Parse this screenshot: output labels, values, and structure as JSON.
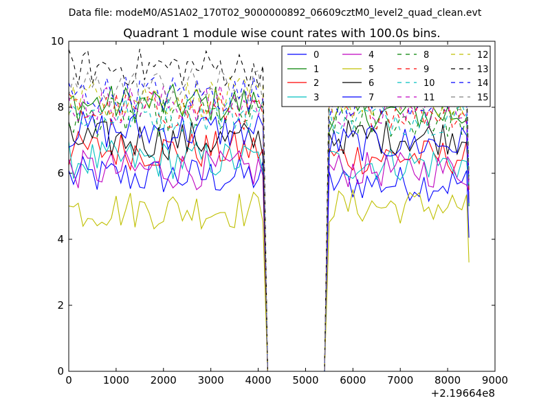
{
  "header": {
    "suptitle": "Data file: modeM0/AS1A02_170T02_9000000892_06609cztM0_level2_quad_clean.evt",
    "title": "Quadrant 1 module wise count rates with 100.0s bins."
  },
  "chart_data": {
    "type": "line",
    "xlim": [
      0,
      9000
    ],
    "ylim": [
      0,
      10
    ],
    "x_offset_label": "+2.19664e8",
    "x_ticks": [
      0,
      1000,
      2000,
      3000,
      4000,
      5000,
      6000,
      7000,
      8000,
      9000
    ],
    "y_ticks": [
      0,
      2,
      4,
      6,
      8,
      10
    ],
    "x_tick_labels": [
      "0",
      "1000",
      "2000",
      "3000",
      "4000",
      "5000",
      "6000",
      "7000",
      "8000",
      "9000"
    ],
    "y_tick_labels": [
      "0",
      "2",
      "4",
      "6",
      "8",
      "10"
    ],
    "grid": false,
    "legend_position": "top-right",
    "legend_columns": 4,
    "segments": {
      "first": {
        "x_start": 0,
        "x_end": 4100,
        "step": 100
      },
      "gap": {
        "x_start": 4200,
        "x_end": 5400,
        "y": 0
      },
      "second": {
        "x_start": 5500,
        "x_end": 8400,
        "step": 100
      },
      "tail_x": 8450
    },
    "series": [
      {
        "name": "0",
        "color": "#0000ff",
        "dash": "solid",
        "level1": 5.9,
        "level2": 5.7,
        "tail": 4.05
      },
      {
        "name": "1",
        "color": "#008000",
        "dash": "solid",
        "level1": 8.1,
        "level2": 7.8,
        "tail": 5.0
      },
      {
        "name": "2",
        "color": "#ff0000",
        "dash": "solid",
        "level1": 6.7,
        "level2": 6.5,
        "tail": 5.2
      },
      {
        "name": "3",
        "color": "#00bfbf",
        "dash": "solid",
        "level1": 6.4,
        "level2": 6.3,
        "tail": 5.6
      },
      {
        "name": "4",
        "color": "#bf00bf",
        "dash": "solid",
        "level1": 6.1,
        "level2": 6.1,
        "tail": 5.4
      },
      {
        "name": "5",
        "color": "#bfbf00",
        "dash": "solid",
        "level1": 4.9,
        "level2": 5.0,
        "tail": 3.3
      },
      {
        "name": "6",
        "color": "#000000",
        "dash": "solid",
        "level1": 7.0,
        "level2": 7.1,
        "tail": 5.5
      },
      {
        "name": "7",
        "color": "#0000ff",
        "dash": "solid",
        "level1": 7.3,
        "level2": 6.9,
        "tail": 5.1
      },
      {
        "name": "8",
        "color": "#008000",
        "dash": "dashed",
        "level1": 7.7,
        "level2": 7.6,
        "tail": 5.5
      },
      {
        "name": "9",
        "color": "#ff0000",
        "dash": "dashed",
        "level1": 7.9,
        "level2": 7.9,
        "tail": 5.4
      },
      {
        "name": "10",
        "color": "#00bfbf",
        "dash": "dashed",
        "level1": 7.8,
        "level2": 7.7,
        "tail": 5.6
      },
      {
        "name": "11",
        "color": "#bf00bf",
        "dash": "dashed",
        "level1": 8.1,
        "level2": 7.9,
        "tail": 5.6
      },
      {
        "name": "12",
        "color": "#bfbf00",
        "dash": "dashed",
        "level1": 8.3,
        "level2": 8.1,
        "tail": 5.7
      },
      {
        "name": "13",
        "color": "#000000",
        "dash": "dashed",
        "level1": 9.2,
        "level2": 8.6,
        "tail": 5.9
      },
      {
        "name": "14",
        "color": "#0000ff",
        "dash": "dashed",
        "level1": 8.4,
        "level2": 8.2,
        "tail": 5.8
      },
      {
        "name": "15",
        "color": "#808080",
        "dash": "dashed",
        "level1": 8.6,
        "level2": 8.4,
        "tail": 5.8
      }
    ]
  }
}
